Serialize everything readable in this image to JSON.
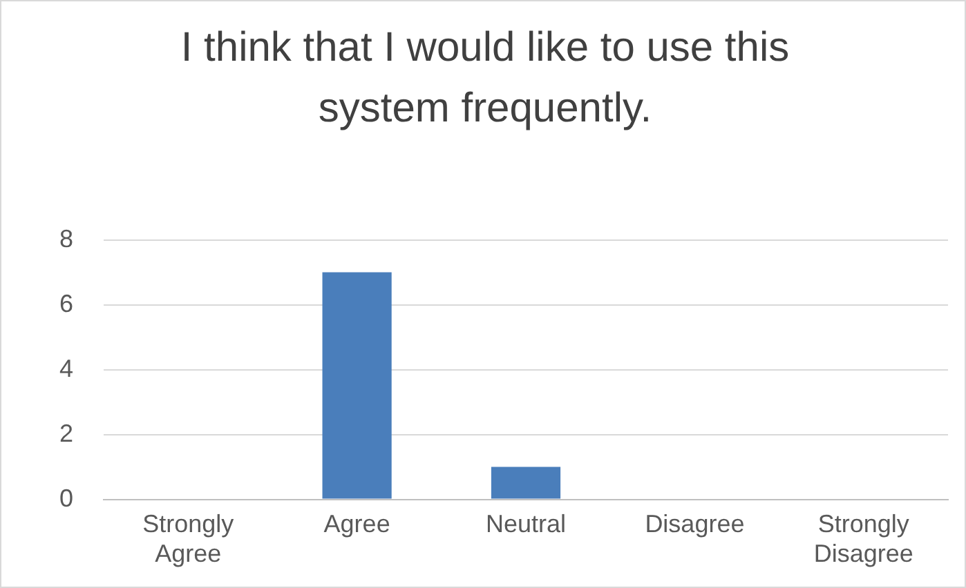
{
  "chart_data": {
    "type": "bar",
    "title": "I think that I would like to use this system frequently.",
    "categories": [
      "Strongly Agree",
      "Agree",
      "Neutral",
      "Disagree",
      "Strongly Disagree"
    ],
    "values": [
      0,
      7,
      1,
      0,
      0
    ],
    "color": "#4a7ebb",
    "ylim": [
      0,
      8
    ],
    "yticks": [
      0,
      2,
      4,
      6,
      8
    ],
    "grid": "y"
  }
}
